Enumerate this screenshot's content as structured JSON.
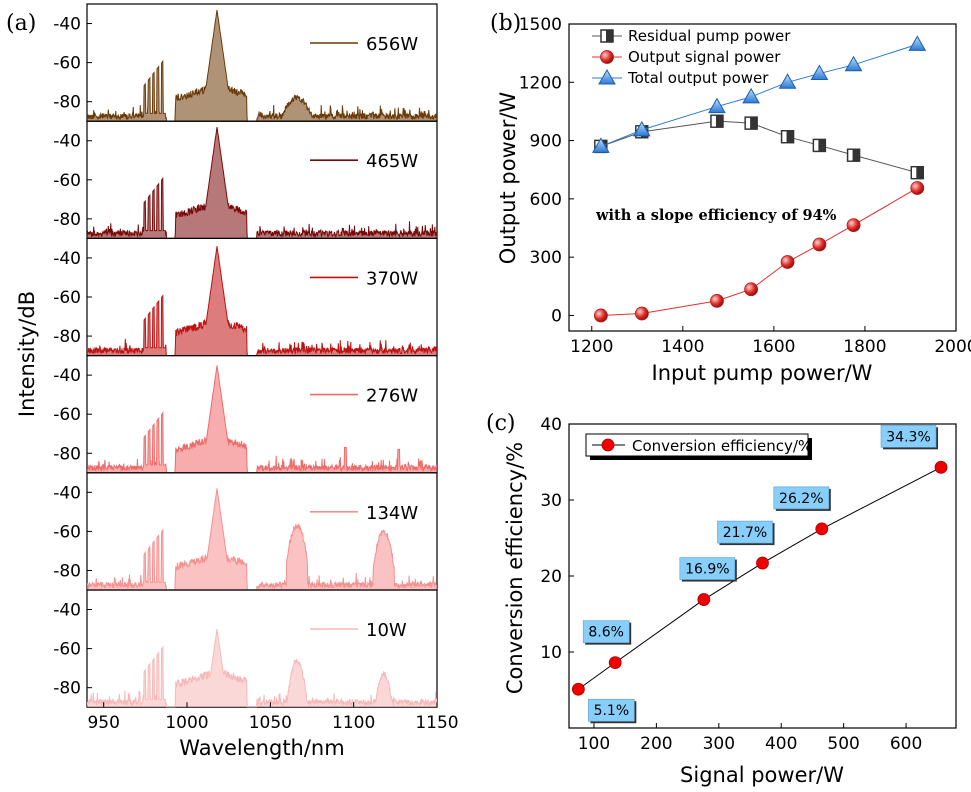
{
  "chart_data": [
    {
      "type": "line",
      "panel_label": "(a)",
      "xlabel": "Wavelength/nm",
      "ylabel": "Intensity/dB",
      "xlim": [
        940,
        1150
      ],
      "x_ticks": [
        "950",
        "1000",
        "1050",
        "1100",
        "1150"
      ],
      "y_ticks": [
        "-40",
        "-60",
        "-80"
      ],
      "ylim": [
        -90,
        -30
      ],
      "series": [
        {
          "name": "656W",
          "color": "#6b3a08",
          "peak_nm": 1018,
          "peak_dB": -33,
          "extra_peaks": [
            [
              1066,
              -78,
              10
            ]
          ]
        },
        {
          "name": "465W",
          "color": "#7a0a0a",
          "peak_nm": 1018,
          "peak_dB": -33,
          "extra_peaks": []
        },
        {
          "name": "370W",
          "color": "#c01010",
          "peak_nm": 1018,
          "peak_dB": -34,
          "extra_peaks": []
        },
        {
          "name": "276W",
          "color": "#f06a6a",
          "peak_nm": 1018,
          "peak_dB": -35,
          "extra_peaks": [
            [
              1095,
              -77,
              0.6
            ],
            [
              1127,
              -78,
              0.6
            ]
          ]
        },
        {
          "name": "134W",
          "color": "#f59090",
          "peak_nm": 1018,
          "peak_dB": -38,
          "extra_peaks": [
            [
              1066,
              -57,
              5
            ],
            [
              1118,
              -60,
              5
            ]
          ]
        },
        {
          "name": "10W",
          "color": "#f7b8b8",
          "peak_nm": 1018,
          "peak_dB": -50,
          "extra_peaks": [
            [
              1066,
              -66,
              4.5
            ],
            [
              1118,
              -73,
              4.5
            ]
          ]
        }
      ]
    },
    {
      "type": "line",
      "panel_label": "(b)",
      "xlabel": "Input pump power/W",
      "ylabel": "Output power/W",
      "xlim": [
        1150,
        2000
      ],
      "ylim": [
        -80,
        1500
      ],
      "x_ticks": [
        1200,
        1400,
        1600,
        1800,
        2000
      ],
      "y_ticks": [
        0,
        300,
        600,
        900,
        1200,
        1500
      ],
      "x": [
        1220,
        1310,
        1475,
        1550,
        1630,
        1700,
        1775,
        1915
      ],
      "series": [
        {
          "name": "Residual pump power",
          "marker": "half-filled-square",
          "color": "#555555",
          "values": [
            870,
            945,
            1000,
            990,
            920,
            875,
            825,
            735
          ]
        },
        {
          "name": "Output signal power",
          "marker": "red-sphere",
          "color": "#e0302a",
          "values": [
            0,
            10,
            75,
            135,
            275,
            365,
            465,
            656
          ]
        },
        {
          "name": "Total output power",
          "marker": "blue-triangle",
          "color": "#2b78d4",
          "values": [
            870,
            955,
            1075,
            1125,
            1200,
            1245,
            1290,
            1395
          ]
        }
      ],
      "annotation": "with a slope efficiency of 94%",
      "legend_position": "top-left"
    },
    {
      "type": "line",
      "panel_label": "(c)",
      "xlabel": "Signal power/W",
      "ylabel": "Conversion efficiency/%",
      "xlim": [
        60,
        680
      ],
      "ylim": [
        0,
        40
      ],
      "x_ticks": [
        100,
        200,
        300,
        400,
        500,
        600
      ],
      "y_ticks": [
        10,
        20,
        30,
        40
      ],
      "series": [
        {
          "name": "Conversion efficiency/%",
          "marker": "red-dot",
          "color": "#ee0000",
          "x": [
            75,
            134,
            276,
            370,
            465,
            656
          ],
          "values": [
            5.1,
            8.6,
            16.9,
            21.7,
            26.2,
            34.3
          ],
          "labels": [
            "5.1%",
            "8.6%",
            "16.9%",
            "21.7%",
            "26.2%",
            "34.3%"
          ]
        }
      ],
      "label_box_color": "#87cefa",
      "legend_position": "top-left"
    }
  ]
}
